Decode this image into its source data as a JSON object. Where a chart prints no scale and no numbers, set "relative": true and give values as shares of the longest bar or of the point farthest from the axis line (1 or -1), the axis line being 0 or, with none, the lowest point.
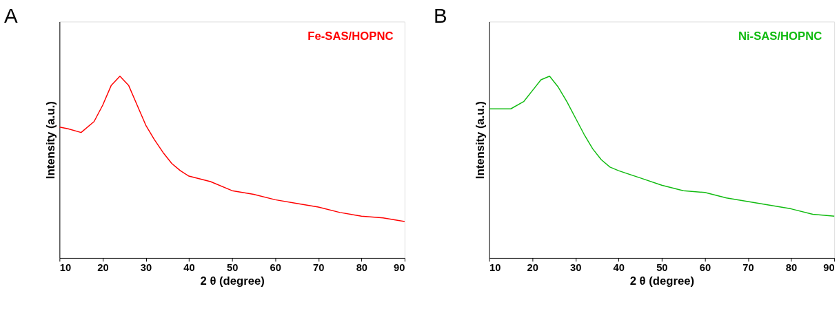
{
  "chart_data": [
    {
      "type": "line",
      "title": "A",
      "xlabel": "2 θ (degree)",
      "ylabel": "Intensity (a.u.)",
      "relative": true,
      "xlim": [
        10,
        90
      ],
      "xticks": [
        10,
        20,
        30,
        40,
        50,
        60,
        70,
        80,
        90
      ],
      "grid": false,
      "legend": "top right",
      "x": [
        10,
        12,
        15,
        18,
        20,
        22,
        24,
        26,
        28,
        30,
        32,
        34,
        36,
        38,
        40,
        45,
        50,
        55,
        60,
        65,
        70,
        75,
        80,
        85,
        90
      ],
      "series": [
        {
          "name": "Fe-SAS/HOPNC",
          "color": "#ff0000",
          "values": [
            0.72,
            0.71,
            0.69,
            0.75,
            0.84,
            0.95,
            1,
            0.95,
            0.84,
            0.73,
            0.65,
            0.58,
            0.52,
            0.48,
            0.45,
            0.42,
            0.37,
            0.35,
            0.32,
            0.3,
            0.28,
            0.25,
            0.23,
            0.22,
            0.2
          ]
        }
      ]
    },
    {
      "type": "line",
      "title": "B",
      "xlabel": "2 θ (degree)",
      "ylabel": "Intensity (a.u.)",
      "relative": true,
      "xlim": [
        10,
        90
      ],
      "xticks": [
        10,
        20,
        30,
        40,
        50,
        60,
        70,
        80,
        90
      ],
      "grid": false,
      "legend": "top right",
      "x": [
        10,
        15,
        18,
        20,
        22,
        24,
        26,
        28,
        30,
        32,
        34,
        36,
        38,
        40,
        45,
        50,
        55,
        60,
        65,
        70,
        75,
        80,
        85,
        90
      ],
      "series": [
        {
          "name": "Ni-SAS/HOPNC",
          "color": "#11bb11",
          "values": [
            0.82,
            0.82,
            0.86,
            0.92,
            0.98,
            1,
            0.94,
            0.86,
            0.77,
            0.68,
            0.6,
            0.54,
            0.5,
            0.48,
            0.44,
            0.4,
            0.37,
            0.36,
            0.33,
            0.31,
            0.29,
            0.27,
            0.24,
            0.23
          ]
        }
      ]
    }
  ]
}
